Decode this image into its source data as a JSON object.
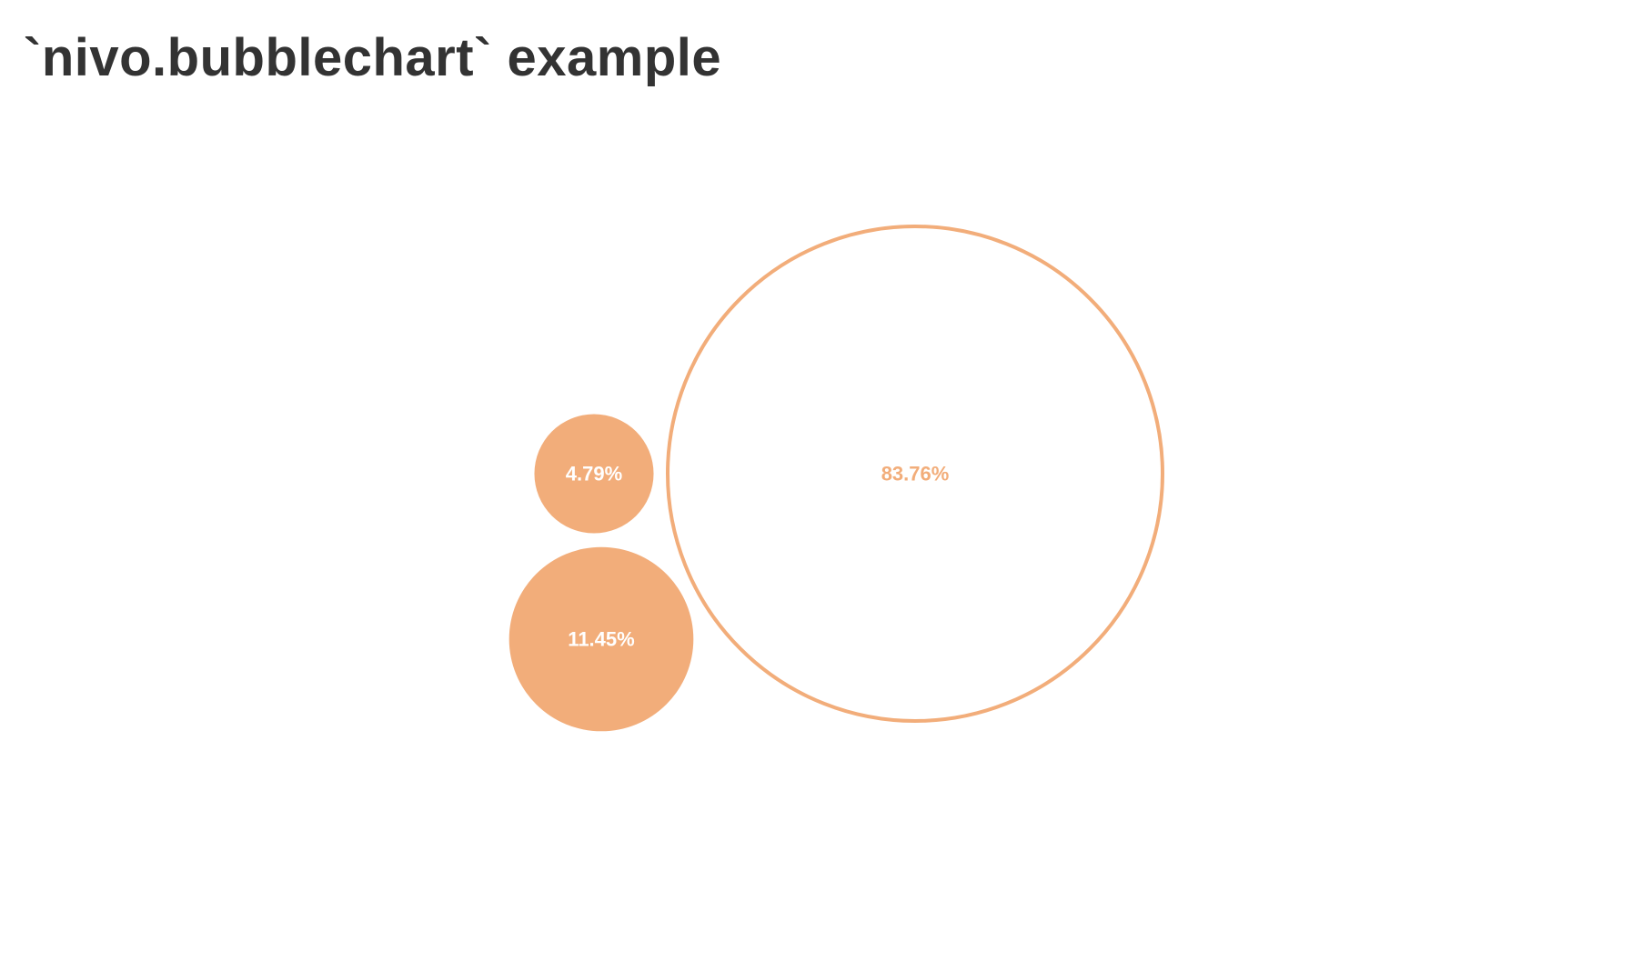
{
  "title": "`nivo.bubblechart` example",
  "chart_data": {
    "type": "bubble",
    "title": "`nivo.bubblechart` example",
    "color": "#f2ad7a",
    "label_color_filled": "#ffffff",
    "nodes": [
      {
        "label": "83.76%",
        "value": 83.76,
        "style": "outlined"
      },
      {
        "label": "11.45%",
        "value": 11.45,
        "style": "filled"
      },
      {
        "label": "4.79%",
        "value": 4.79,
        "style": "filled"
      }
    ]
  }
}
